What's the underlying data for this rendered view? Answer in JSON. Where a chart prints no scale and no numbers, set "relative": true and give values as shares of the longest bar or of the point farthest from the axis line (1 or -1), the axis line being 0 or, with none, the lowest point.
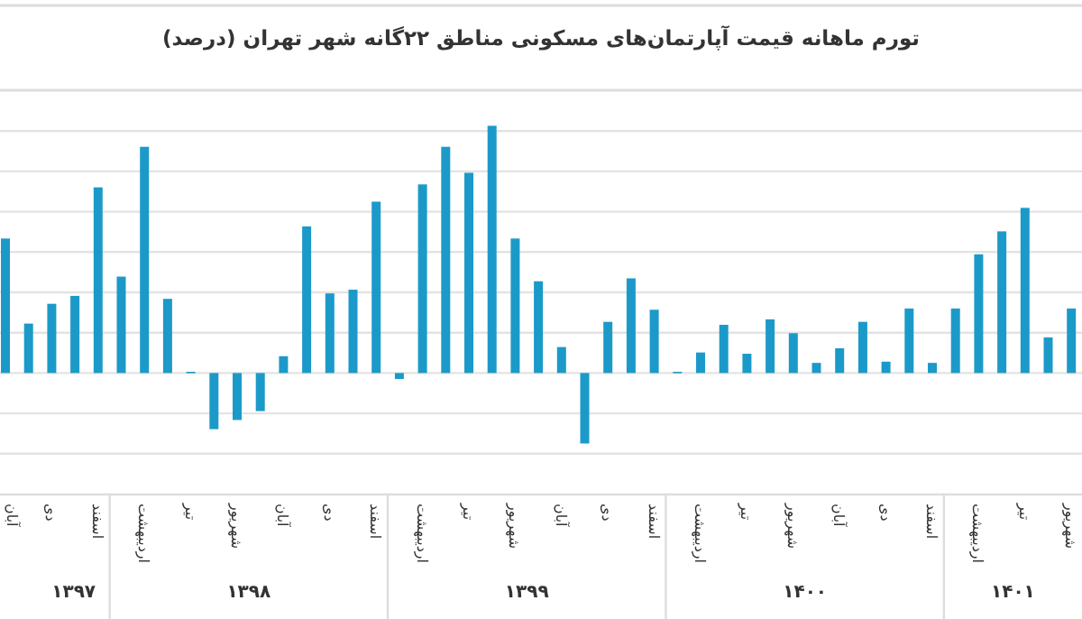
{
  "chart_data": {
    "type": "bar",
    "title": "تورم ماهانه قیمت آپارتمان‌های مسکونی مناطق ۲۲گانه شهر تهران (درصد)",
    "categories": [
      "آبان",
      null,
      "دی",
      null,
      "اسفند",
      null,
      "اردیبهشت",
      null,
      "تیر",
      null,
      "شهریور",
      null,
      "آبان",
      null,
      "دی",
      null,
      "اسفند",
      null,
      "اردیبهشت",
      null,
      "تیر",
      null,
      "شهریور",
      null,
      "آبان",
      null,
      "دی",
      null,
      "اسفند",
      null,
      "اردیبهشت",
      null,
      "تیر",
      null,
      "شهریور",
      null,
      "آبان",
      null,
      "دی",
      null,
      "اسفند",
      null,
      "اردیبهشت",
      null,
      "تیر",
      null,
      "شهریور"
    ],
    "values": [
      0.544,
      0.2,
      0.28,
      0.312,
      0.751,
      0.39,
      0.915,
      0.3,
      0.005,
      -0.227,
      -0.19,
      -0.154,
      0.068,
      0.593,
      0.322,
      0.337,
      0.693,
      -0.024,
      0.763,
      0.915,
      0.81,
      1,
      0.544,
      0.371,
      0.105,
      -0.285,
      0.207,
      0.383,
      0.256,
      0.005,
      0.083,
      0.195,
      0.078,
      0.217,
      0.161,
      0.041,
      0.1,
      0.207,
      0.046,
      0.261,
      0.041,
      0.261,
      0.48,
      0.573,
      0.668,
      0.144,
      0.261
    ],
    "color": "#1b9ac9",
    "relative": true,
    "grid": "y",
    "annotations": [
      "۱۳۹۷",
      "۱۳۹۸",
      "۱۳۹۹",
      "۱۴۰۰",
      "۱۴۰۱"
    ]
  }
}
